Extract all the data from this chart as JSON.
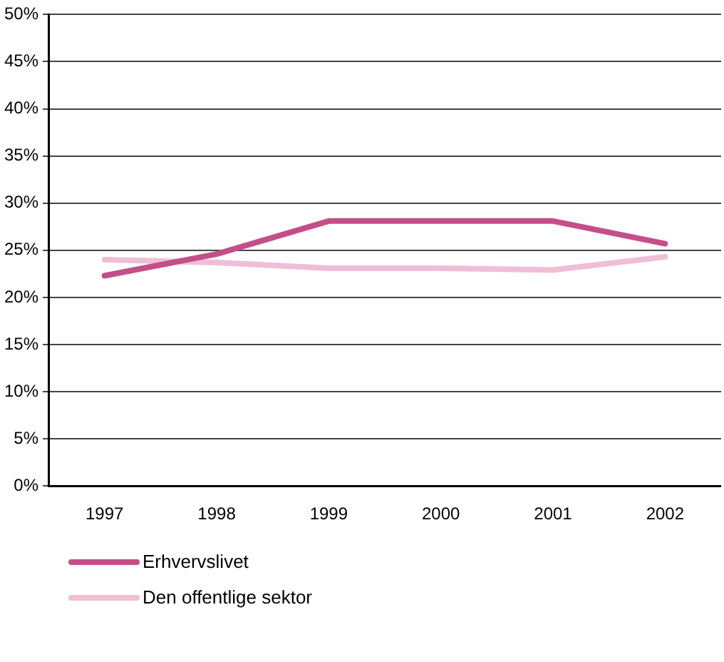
{
  "chart_data": {
    "type": "line",
    "categories": [
      "1997",
      "1998",
      "1999",
      "2000",
      "2001",
      "2002"
    ],
    "series": [
      {
        "name": "Erhvervslivet",
        "color": "#c44f88",
        "values": [
          22.3,
          24.6,
          28.1,
          28.1,
          28.1,
          25.7
        ]
      },
      {
        "name": "Den offentlige sektor",
        "color": "#efbfd6",
        "values": [
          24.0,
          23.7,
          23.1,
          23.1,
          22.9,
          24.3
        ]
      }
    ],
    "ylim": [
      0,
      50
    ],
    "yticks": [
      {
        "value": 0,
        "label": "0%"
      },
      {
        "value": 5,
        "label": "5%"
      },
      {
        "value": 10,
        "label": "10%"
      },
      {
        "value": 15,
        "label": "15%"
      },
      {
        "value": 20,
        "label": "20%"
      },
      {
        "value": 25,
        "label": "25%"
      },
      {
        "value": 30,
        "label": "30%"
      },
      {
        "value": 35,
        "label": "35%"
      },
      {
        "value": 40,
        "label": "40%"
      },
      {
        "value": 45,
        "label": "45%"
      },
      {
        "value": 50,
        "label": "50%"
      }
    ],
    "grid": "y",
    "legend": "bottom left",
    "marker": "none",
    "line_style": "solid"
  }
}
